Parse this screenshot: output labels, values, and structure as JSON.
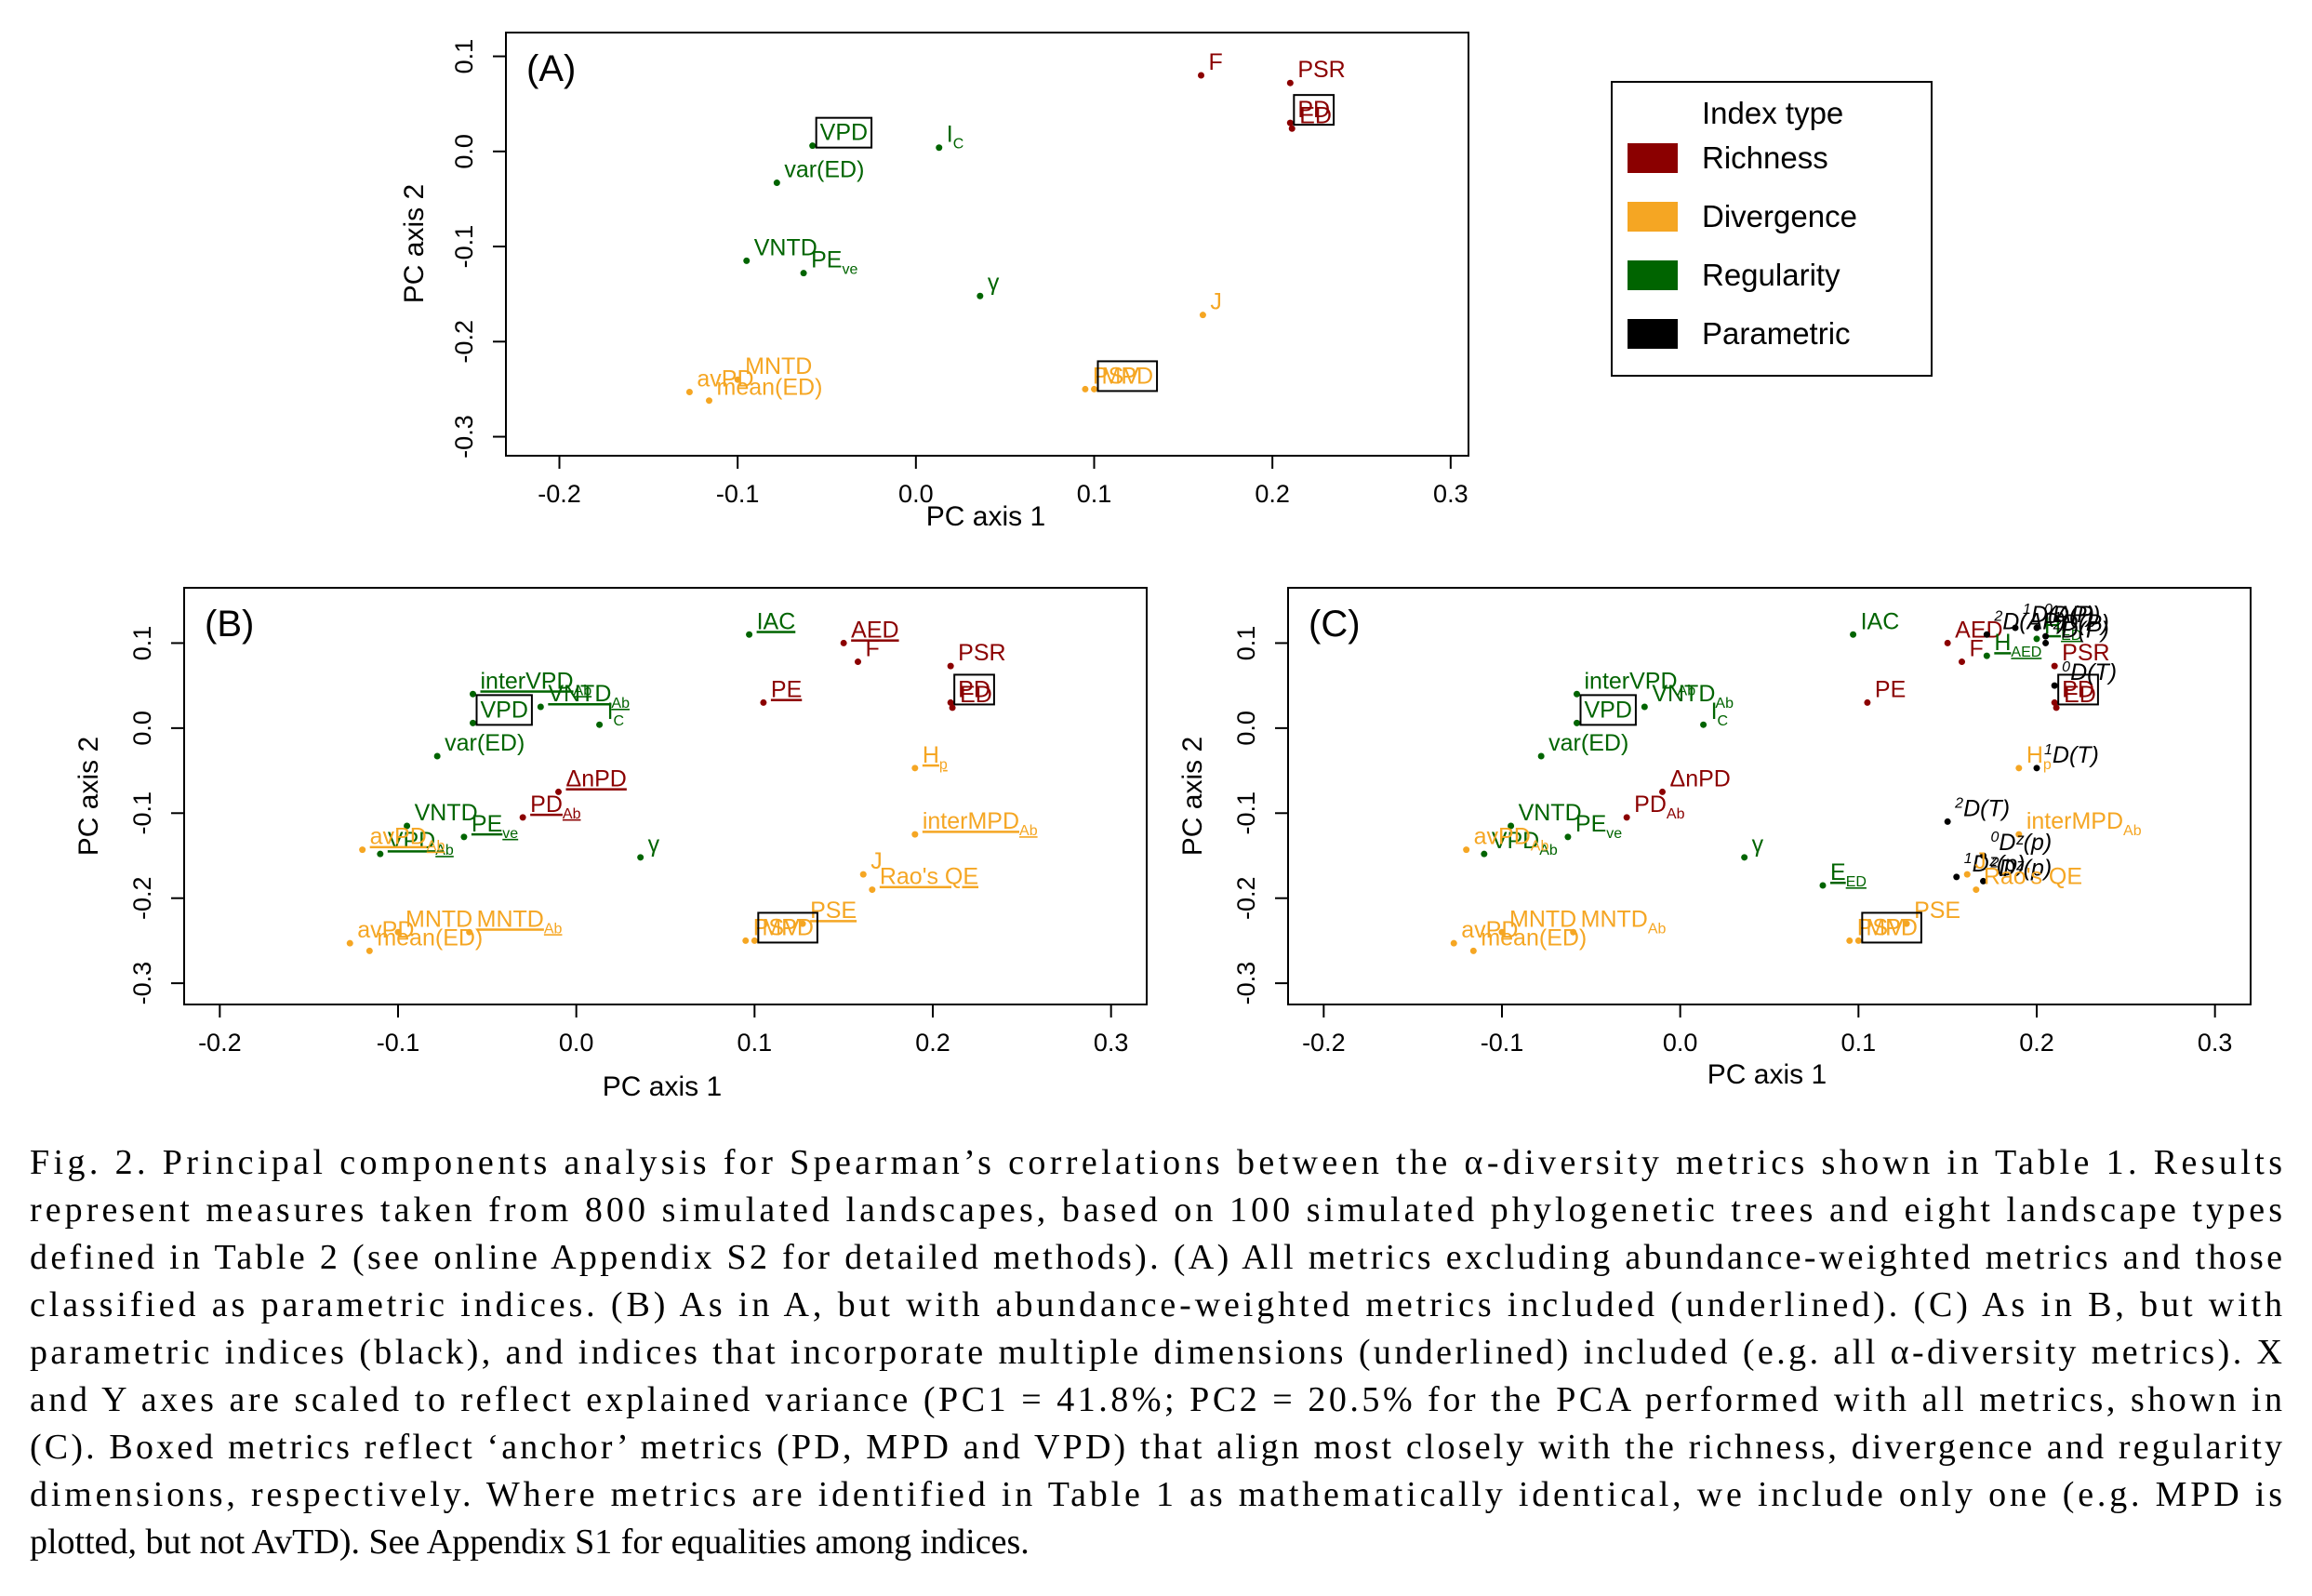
{
  "colors": {
    "Richness": "#8b0000",
    "Divergence": "#f5a623",
    "Regularity": "#006400",
    "Parametric": "#000000"
  },
  "legend": {
    "title": "Index type",
    "items": [
      "Richness",
      "Divergence",
      "Regularity",
      "Parametric"
    ]
  },
  "chart_data": [
    {
      "type": "scatter",
      "panel": "(A)",
      "xlabel": "PC axis 1",
      "ylabel": "PC axis 2",
      "xlim": [
        -0.23,
        0.31
      ],
      "ylim": [
        -0.32,
        0.125
      ],
      "xticks": [
        "-0.2",
        "-0.1",
        "0.0",
        "0.1",
        "0.2",
        "0.3"
      ],
      "yticks": [
        "0.1",
        "0.0",
        "-0.1",
        "-0.2",
        "-0.3"
      ],
      "points": [
        {
          "label": "F",
          "x": 0.16,
          "y": 0.08,
          "type": "Richness"
        },
        {
          "label": "PSR",
          "x": 0.21,
          "y": 0.072,
          "type": "Richness"
        },
        {
          "label": "PD",
          "x": 0.21,
          "y": 0.03,
          "type": "Richness",
          "boxed": true
        },
        {
          "label": "ED",
          "x": 0.211,
          "y": 0.024,
          "type": "Richness"
        },
        {
          "label": "VPD",
          "x": -0.058,
          "y": 0.006,
          "type": "Regularity",
          "boxed": true
        },
        {
          "label": "var(ED)",
          "x": -0.078,
          "y": -0.033,
          "type": "Regularity"
        },
        {
          "label": "IC",
          "x": 0.013,
          "y": 0.004,
          "type": "Regularity"
        },
        {
          "label": "VNTD",
          "x": -0.095,
          "y": -0.115,
          "type": "Regularity"
        },
        {
          "label": "PEve",
          "x": -0.063,
          "y": -0.128,
          "type": "Regularity"
        },
        {
          "label": "γ",
          "x": 0.036,
          "y": -0.152,
          "type": "Regularity"
        },
        {
          "label": "J",
          "x": 0.161,
          "y": -0.172,
          "type": "Divergence"
        },
        {
          "label": "avPD",
          "x": -0.127,
          "y": -0.253,
          "type": "Divergence"
        },
        {
          "label": "MNTD",
          "x": -0.1,
          "y": -0.24,
          "type": "Divergence"
        },
        {
          "label": "mean(ED)",
          "x": -0.116,
          "y": -0.262,
          "type": "Divergence"
        },
        {
          "label": "PSV",
          "x": 0.095,
          "y": -0.25,
          "type": "Divergence"
        },
        {
          "label": "MPD",
          "x": 0.1,
          "y": -0.25,
          "type": "Divergence",
          "boxed": true
        }
      ]
    },
    {
      "type": "scatter",
      "panel": "(B)",
      "xlabel": "PC axis 1",
      "ylabel": "PC axis 2",
      "xlim": [
        -0.22,
        0.32
      ],
      "ylim": [
        -0.325,
        0.165
      ],
      "xticks": [
        "-0.2",
        "-0.1",
        "0.0",
        "0.1",
        "0.2",
        "0.3"
      ],
      "yticks": [
        "0.1",
        "0.0",
        "-0.1",
        "-0.2",
        "-0.3"
      ],
      "points": [
        {
          "label": "IAC",
          "x": 0.097,
          "y": 0.11,
          "type": "Regularity",
          "underlined": true
        },
        {
          "label": "AED",
          "x": 0.15,
          "y": 0.1,
          "type": "Richness",
          "underlined": true
        },
        {
          "label": "F",
          "x": 0.158,
          "y": 0.078,
          "type": "Richness"
        },
        {
          "label": "PSR",
          "x": 0.21,
          "y": 0.073,
          "type": "Richness"
        },
        {
          "label": "PE",
          "x": 0.105,
          "y": 0.03,
          "type": "Richness",
          "underlined": true
        },
        {
          "label": "PD",
          "x": 0.21,
          "y": 0.03,
          "type": "Richness",
          "boxed": true
        },
        {
          "label": "ED",
          "x": 0.211,
          "y": 0.024,
          "type": "Richness"
        },
        {
          "label": "interVPDAb",
          "x": -0.058,
          "y": 0.04,
          "type": "Regularity",
          "underlined": true
        },
        {
          "label": "VNTDAb",
          "x": -0.02,
          "y": 0.025,
          "type": "Regularity",
          "underlined": true
        },
        {
          "label": "VPD",
          "x": -0.058,
          "y": 0.006,
          "type": "Regularity",
          "boxed": true
        },
        {
          "label": "var(ED)",
          "x": -0.078,
          "y": -0.033,
          "type": "Regularity"
        },
        {
          "label": "IC",
          "x": 0.013,
          "y": 0.004,
          "type": "Regularity"
        },
        {
          "label": "ΔnPD",
          "x": -0.01,
          "y": -0.075,
          "type": "Richness",
          "underlined": true
        },
        {
          "label": "PDAb",
          "x": -0.03,
          "y": -0.105,
          "type": "Richness",
          "underlined": true
        },
        {
          "label": "VNTD",
          "x": -0.095,
          "y": -0.115,
          "type": "Regularity"
        },
        {
          "label": "PEve",
          "x": -0.063,
          "y": -0.128,
          "type": "Regularity",
          "underlined": true
        },
        {
          "label": "VPDAb",
          "x": -0.11,
          "y": -0.148,
          "type": "Regularity",
          "underlined": true
        },
        {
          "label": "γ",
          "x": 0.036,
          "y": -0.152,
          "type": "Regularity"
        },
        {
          "label": "avPDAb",
          "x": -0.12,
          "y": -0.143,
          "type": "Divergence",
          "underlined": true
        },
        {
          "label": "Hp",
          "x": 0.19,
          "y": -0.047,
          "type": "Divergence",
          "underlined": true
        },
        {
          "label": "interMPDAb",
          "x": 0.19,
          "y": -0.125,
          "type": "Divergence",
          "underlined": true
        },
        {
          "label": "J",
          "x": 0.161,
          "y": -0.172,
          "type": "Divergence"
        },
        {
          "label": "Rao's QE",
          "x": 0.166,
          "y": -0.19,
          "type": "Divergence",
          "underlined": true
        },
        {
          "label": "PSE",
          "x": 0.127,
          "y": -0.23,
          "type": "Divergence",
          "underlined": true
        },
        {
          "label": "PSV",
          "x": 0.095,
          "y": -0.25,
          "type": "Divergence"
        },
        {
          "label": "MPD",
          "x": 0.1,
          "y": -0.25,
          "type": "Divergence",
          "boxed": true
        },
        {
          "label": "avPD",
          "x": -0.127,
          "y": -0.253,
          "type": "Divergence"
        },
        {
          "label": "MNTD",
          "x": -0.1,
          "y": -0.24,
          "type": "Divergence"
        },
        {
          "label": "mean(ED)",
          "x": -0.116,
          "y": -0.262,
          "type": "Divergence"
        },
        {
          "label": "MNTDAb",
          "x": -0.06,
          "y": -0.24,
          "type": "Divergence",
          "underlined": true
        }
      ]
    },
    {
      "type": "scatter",
      "panel": "(C)",
      "xlabel": "PC axis 1",
      "ylabel": "PC axis 2",
      "xlim": [
        -0.22,
        0.32
      ],
      "ylim": [
        -0.325,
        0.165
      ],
      "xticks": [
        "-0.2",
        "-0.1",
        "0.0",
        "0.1",
        "0.2",
        "0.3"
      ],
      "yticks": [
        "0.1",
        "0.0",
        "-0.1",
        "-0.2",
        "-0.3"
      ],
      "points": [
        {
          "label": "IAC",
          "x": 0.097,
          "y": 0.11,
          "type": "Regularity"
        },
        {
          "label": "AED",
          "x": 0.15,
          "y": 0.1,
          "type": "Richness"
        },
        {
          "label": "F",
          "x": 0.158,
          "y": 0.078,
          "type": "Richness"
        },
        {
          "label": "PE",
          "x": 0.105,
          "y": 0.03,
          "type": "Richness"
        },
        {
          "label": "HED",
          "x": 0.2,
          "y": 0.105,
          "type": "Regularity",
          "underlined": true
        },
        {
          "label": "HAED",
          "x": 0.172,
          "y": 0.085,
          "type": "Regularity",
          "underlined": true
        },
        {
          "label": "PSR",
          "x": 0.21,
          "y": 0.073,
          "type": "Richness"
        },
        {
          "label": "PD",
          "x": 0.21,
          "y": 0.03,
          "type": "Richness",
          "boxed": true
        },
        {
          "label": "ED",
          "x": 0.211,
          "y": 0.024,
          "type": "Richness"
        },
        {
          "label": "1D(AP)",
          "x": 0.188,
          "y": 0.118,
          "type": "Parametric"
        },
        {
          "label": "0D(P)",
          "x": 0.2,
          "y": 0.118,
          "type": "Parametric"
        },
        {
          "label": "2D(AP)",
          "x": 0.172,
          "y": 0.11,
          "type": "Parametric"
        },
        {
          "label": "1D(P)",
          "x": 0.205,
          "y": 0.108,
          "type": "Parametric"
        },
        {
          "label": "2D(P)",
          "x": 0.205,
          "y": 0.1,
          "type": "Parametric"
        },
        {
          "label": "0D(T)",
          "x": 0.21,
          "y": 0.05,
          "type": "Parametric"
        },
        {
          "label": "interVPDAb",
          "x": -0.058,
          "y": 0.04,
          "type": "Regularity"
        },
        {
          "label": "VNTDAb",
          "x": -0.02,
          "y": 0.025,
          "type": "Regularity"
        },
        {
          "label": "VPD",
          "x": -0.058,
          "y": 0.006,
          "type": "Regularity",
          "boxed": true
        },
        {
          "label": "var(ED)",
          "x": -0.078,
          "y": -0.033,
          "type": "Regularity"
        },
        {
          "label": "IC",
          "x": 0.013,
          "y": 0.004,
          "type": "Regularity"
        },
        {
          "label": "ΔnPD",
          "x": -0.01,
          "y": -0.075,
          "type": "Richness"
        },
        {
          "label": "PDAb",
          "x": -0.03,
          "y": -0.105,
          "type": "Richness"
        },
        {
          "label": "VNTD",
          "x": -0.095,
          "y": -0.115,
          "type": "Regularity"
        },
        {
          "label": "PEve",
          "x": -0.063,
          "y": -0.128,
          "type": "Regularity"
        },
        {
          "label": "VPDAb",
          "x": -0.11,
          "y": -0.148,
          "type": "Regularity"
        },
        {
          "label": "γ",
          "x": 0.036,
          "y": -0.152,
          "type": "Regularity"
        },
        {
          "label": "EED",
          "x": 0.08,
          "y": -0.185,
          "type": "Regularity",
          "underlined": true
        },
        {
          "label": "Hp",
          "x": 0.19,
          "y": -0.047,
          "type": "Divergence"
        },
        {
          "label": "1D(T)",
          "x": 0.2,
          "y": -0.047,
          "type": "Parametric"
        },
        {
          "label": "2D(T)",
          "x": 0.15,
          "y": -0.11,
          "type": "Parametric"
        },
        {
          "label": "interMPDAb",
          "x": 0.19,
          "y": -0.125,
          "type": "Divergence"
        },
        {
          "label": "0Dz(p)",
          "x": 0.17,
          "y": -0.15,
          "type": "Parametric"
        },
        {
          "label": "1Dz(p)",
          "x": 0.155,
          "y": -0.175,
          "type": "Parametric"
        },
        {
          "label": "J",
          "x": 0.161,
          "y": -0.172,
          "type": "Divergence"
        },
        {
          "label": "2Dz(p)",
          "x": 0.17,
          "y": -0.18,
          "type": "Parametric"
        },
        {
          "label": "Rao's QE",
          "x": 0.166,
          "y": -0.19,
          "type": "Divergence"
        },
        {
          "label": "PSE",
          "x": 0.127,
          "y": -0.23,
          "type": "Divergence"
        },
        {
          "label": "PSV",
          "x": 0.095,
          "y": -0.25,
          "type": "Divergence"
        },
        {
          "label": "MPD",
          "x": 0.1,
          "y": -0.25,
          "type": "Divergence",
          "boxed": true
        },
        {
          "label": "avPDAb",
          "x": -0.12,
          "y": -0.143,
          "type": "Divergence"
        },
        {
          "label": "avPD",
          "x": -0.127,
          "y": -0.253,
          "type": "Divergence"
        },
        {
          "label": "MNTD",
          "x": -0.1,
          "y": -0.24,
          "type": "Divergence"
        },
        {
          "label": "mean(ED)",
          "x": -0.116,
          "y": -0.262,
          "type": "Divergence"
        },
        {
          "label": "MNTDAb",
          "x": -0.06,
          "y": -0.24,
          "type": "Divergence"
        }
      ]
    }
  ],
  "caption": {
    "lines": [
      "Fig. 2. Principal components analysis for Spearman’s correlations between the α-diversity metrics shown in Table 1. Results",
      "represent measures taken from 800 simulated landscapes, based on 100 simulated phylogenetic trees and eight landscape types",
      "defined in Table 2 (see online Appendix S2 for detailed methods). (A) All metrics excluding abundance-weighted metrics and those",
      "classified as parametric indices. (B) As in A, but with abundance-weighted metrics included (underlined). (C) As in B, but with",
      "parametric indices (black), and indices that incorporate multiple dimensions (underlined) included (e.g. all α-diversity metrics). X",
      "and Y axes are scaled to reflect explained variance (PC1 = 41.8%; PC2 = 20.5% for the PCA performed with all metrics, shown in",
      "(C). Boxed metrics reflect ‘anchor’ metrics (PD, MPD and VPD) that align most closely with the richness, divergence and regularity",
      "dimensions, respectively. Where metrics are identified in Table 1 as mathematically identical, we include only one (e.g. MPD is",
      "plotted, but not AvTD). See Appendix S1 for equalities among indices."
    ]
  }
}
